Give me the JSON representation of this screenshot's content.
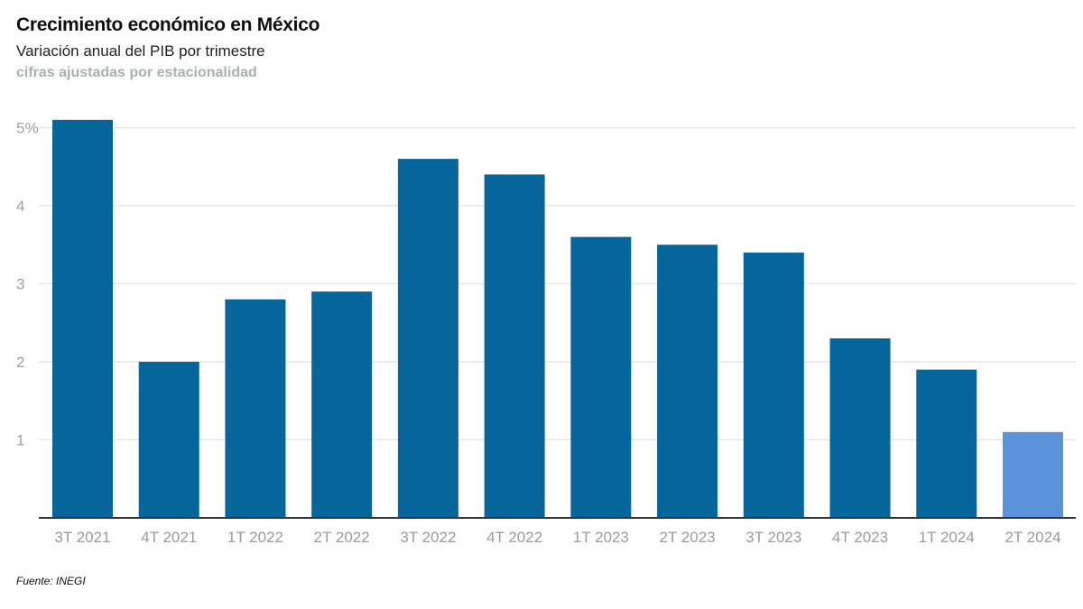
{
  "title": "Crecimiento económico en México",
  "subtitle": "Variación anual del PIB por trimestre",
  "note": "cifras ajustadas por estacionalidad",
  "source": "Fuente: INEGI",
  "colors": {
    "bar": "#05669b",
    "bar_highlight": "#5b93db",
    "grid": "#e6e6e6",
    "axis": "#333333"
  },
  "chart_data": {
    "type": "bar",
    "title": "Crecimiento económico en México",
    "subtitle": "Variación anual del PIB por trimestre",
    "categories": [
      "3T 2021",
      "4T 2021",
      "1T 2022",
      "2T 2022",
      "3T 2022",
      "4T 2022",
      "1T 2023",
      "2T 2023",
      "3T 2023",
      "4T 2023",
      "1T 2024",
      "2T 2024"
    ],
    "values": [
      5.1,
      2.0,
      2.8,
      2.9,
      4.6,
      4.4,
      3.6,
      3.5,
      3.4,
      2.3,
      1.9,
      1.1
    ],
    "highlight_index": 11,
    "y_ticks": [
      {
        "value": 1,
        "label": "1"
      },
      {
        "value": 2,
        "label": "2"
      },
      {
        "value": 3,
        "label": "3"
      },
      {
        "value": 4,
        "label": "4"
      },
      {
        "value": 5,
        "label": "5%"
      }
    ],
    "ylim": [
      0,
      5
    ],
    "grid": true,
    "xlabel": "",
    "ylabel": ""
  }
}
